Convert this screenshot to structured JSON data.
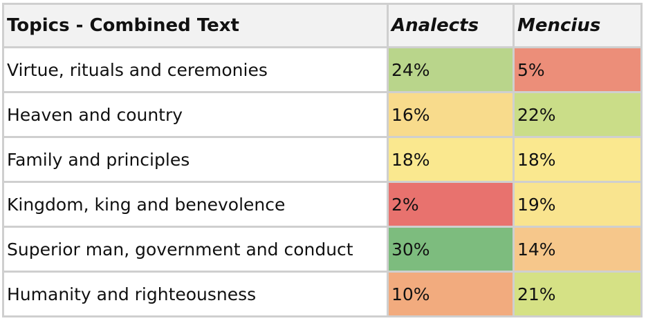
{
  "chart_data": {
    "type": "table",
    "columns": [
      "Topics - Combined Text",
      "Analects",
      "Mencius"
    ],
    "rows": [
      {
        "topic": "Virtue, rituals and ceremonies",
        "analects": "24%",
        "mencius": "5%"
      },
      {
        "topic": "Heaven and country",
        "analects": "16%",
        "mencius": "22%"
      },
      {
        "topic": "Family and principles",
        "analects": "18%",
        "mencius": "18%"
      },
      {
        "topic": "Kingdom, king and benevolence",
        "analects": "2%",
        "mencius": "19%"
      },
      {
        "topic": "Superior man, government and conduct",
        "analects": "30%",
        "mencius": "14%"
      },
      {
        "topic": "Humanity and righteousness",
        "analects": "10%",
        "mencius": "21%"
      }
    ],
    "cell_colors": {
      "analects": [
        "#b9d58b",
        "#f8db8c",
        "#fae88f",
        "#e8726e",
        "#7dbc7e",
        "#f2ab7e"
      ],
      "mencius": [
        "#ec8e79",
        "#cadd88",
        "#fae88f",
        "#f9e48f",
        "#f6c78b",
        "#d5e185"
      ]
    }
  }
}
